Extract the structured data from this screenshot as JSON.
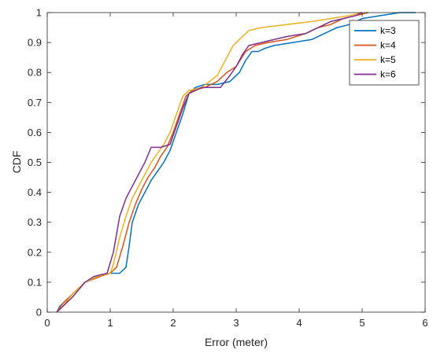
{
  "chart_data": {
    "type": "line",
    "title": "",
    "xlabel": "Error (meter)",
    "ylabel": "CDF",
    "xlim": [
      0,
      6
    ],
    "ylim": [
      0,
      1
    ],
    "xticks": [
      0,
      1,
      2,
      3,
      4,
      5,
      6
    ],
    "xtick_labels": [
      "0",
      "1",
      "2",
      "3",
      "4",
      "5",
      "6"
    ],
    "yticks": [
      0,
      0.1,
      0.2,
      0.3,
      0.4,
      0.5,
      0.6,
      0.7,
      0.8,
      0.9,
      1
    ],
    "ytick_labels": [
      "0",
      "0.1",
      "0.2",
      "0.3",
      "0.4",
      "0.5",
      "0.6",
      "0.7",
      "0.8",
      "0.9",
      "1"
    ],
    "grid": false,
    "legend_position": "top-right",
    "series": [
      {
        "name": "k=3",
        "color": "#0072BD",
        "x": [
          0.15,
          0.2,
          0.3,
          0.45,
          0.6,
          0.8,
          1.0,
          1.15,
          1.25,
          1.3,
          1.35,
          1.45,
          1.55,
          1.65,
          1.75,
          1.85,
          1.95,
          2.05,
          2.15,
          2.25,
          2.35,
          2.5,
          2.7,
          2.9,
          3.05,
          3.15,
          3.25,
          3.35,
          3.45,
          3.6,
          3.9,
          4.2,
          4.4,
          4.6,
          4.8,
          5.0,
          5.3,
          5.6,
          5.85
        ],
        "y": [
          0.0,
          0.02,
          0.04,
          0.07,
          0.1,
          0.12,
          0.13,
          0.13,
          0.15,
          0.22,
          0.3,
          0.36,
          0.4,
          0.44,
          0.47,
          0.5,
          0.54,
          0.6,
          0.66,
          0.73,
          0.75,
          0.76,
          0.76,
          0.77,
          0.8,
          0.84,
          0.87,
          0.87,
          0.88,
          0.89,
          0.9,
          0.91,
          0.93,
          0.95,
          0.96,
          0.98,
          0.99,
          1.0,
          1.0
        ]
      },
      {
        "name": "k=4",
        "color": "#D95319",
        "x": [
          0.15,
          0.25,
          0.4,
          0.6,
          0.85,
          1.0,
          1.1,
          1.2,
          1.3,
          1.4,
          1.5,
          1.6,
          1.7,
          1.8,
          1.9,
          2.0,
          2.1,
          2.2,
          2.3,
          2.5,
          2.7,
          2.85,
          3.0,
          3.15,
          3.3,
          3.5,
          3.8,
          4.1,
          4.3,
          4.5,
          4.7,
          4.9,
          5.1
        ],
        "y": [
          0.0,
          0.03,
          0.06,
          0.1,
          0.12,
          0.13,
          0.15,
          0.22,
          0.3,
          0.36,
          0.41,
          0.45,
          0.48,
          0.52,
          0.55,
          0.6,
          0.66,
          0.72,
          0.74,
          0.75,
          0.77,
          0.8,
          0.82,
          0.87,
          0.89,
          0.9,
          0.91,
          0.93,
          0.95,
          0.96,
          0.98,
          0.99,
          1.0
        ]
      },
      {
        "name": "k=5",
        "color": "#EDB120",
        "x": [
          0.15,
          0.25,
          0.4,
          0.6,
          0.8,
          1.0,
          1.05,
          1.15,
          1.25,
          1.35,
          1.45,
          1.55,
          1.65,
          1.75,
          1.85,
          1.95,
          2.05,
          2.15,
          2.25,
          2.45,
          2.7,
          2.85,
          2.95,
          3.05,
          3.2,
          3.4,
          3.8,
          4.2,
          4.5,
          4.8,
          5.0
        ],
        "y": [
          0.0,
          0.02,
          0.06,
          0.1,
          0.12,
          0.13,
          0.16,
          0.25,
          0.32,
          0.38,
          0.42,
          0.46,
          0.5,
          0.53,
          0.56,
          0.6,
          0.66,
          0.72,
          0.74,
          0.75,
          0.79,
          0.85,
          0.89,
          0.91,
          0.94,
          0.95,
          0.96,
          0.97,
          0.98,
          0.99,
          1.0
        ]
      },
      {
        "name": "k=6",
        "color": "#7E2F8E",
        "x": [
          0.15,
          0.25,
          0.4,
          0.6,
          0.75,
          0.95,
          1.05,
          1.15,
          1.25,
          1.35,
          1.45,
          1.55,
          1.65,
          1.8,
          1.95,
          2.05,
          2.15,
          2.25,
          2.45,
          2.75,
          2.9,
          3.0,
          3.1,
          3.2,
          3.4,
          3.8,
          4.1,
          4.3,
          4.5,
          4.7,
          4.9,
          5.0
        ],
        "y": [
          0.0,
          0.02,
          0.05,
          0.1,
          0.12,
          0.13,
          0.2,
          0.32,
          0.38,
          0.42,
          0.46,
          0.5,
          0.55,
          0.55,
          0.56,
          0.62,
          0.68,
          0.73,
          0.75,
          0.75,
          0.79,
          0.82,
          0.86,
          0.89,
          0.9,
          0.92,
          0.93,
          0.95,
          0.97,
          0.98,
          0.99,
          1.0
        ]
      }
    ]
  }
}
